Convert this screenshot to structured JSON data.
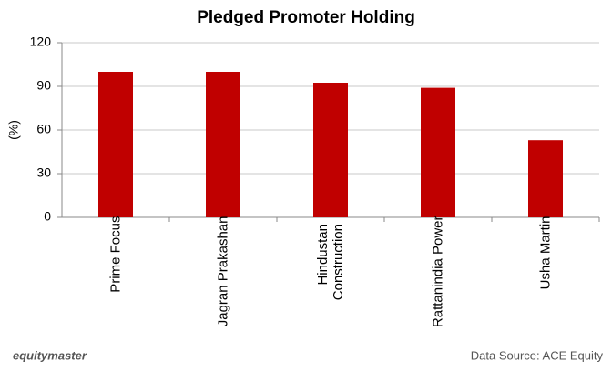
{
  "chart_data": {
    "type": "bar",
    "title": "Pledged Promoter Holding",
    "y_label": "(%)",
    "categories": [
      "Prime Focus",
      "Jagran Prakashan",
      "Hindustan Construction",
      "Rattanindia Power",
      "Usha Martin"
    ],
    "values": [
      100,
      100,
      92.5,
      89,
      53
    ],
    "color": "#c00000",
    "ylim": [
      0,
      120
    ],
    "yticks": [
      0,
      30,
      60,
      90,
      120
    ],
    "grid": true,
    "brand": "equitymaster",
    "source": "Data Source: ACE Equity"
  }
}
